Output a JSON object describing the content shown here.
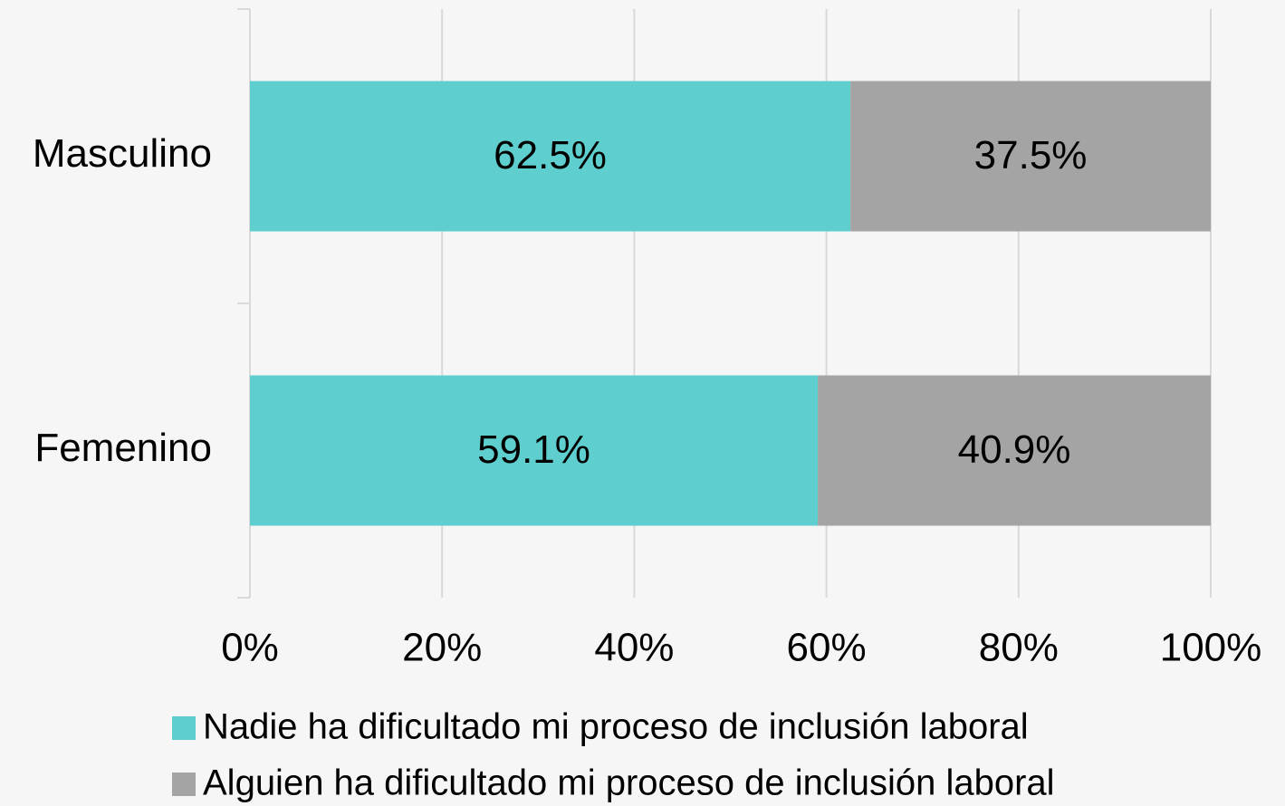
{
  "chart_data": {
    "type": "bar",
    "orientation": "horizontal",
    "stacked": true,
    "categories": [
      "Masculino",
      "Femenino"
    ],
    "series": [
      {
        "name": "Nadie ha dificultado mi proceso de inclusión laboral",
        "color": "#5ecece",
        "values": [
          62.5,
          59.1
        ],
        "value_labels": [
          "62.5%",
          "59.1%"
        ]
      },
      {
        "name": "Alguien ha dificultado mi proceso de inclusión laboral",
        "color": "#a5a4a4",
        "values": [
          37.5,
          40.9
        ],
        "value_labels": [
          "37.5%",
          "40.9%"
        ]
      }
    ],
    "xlim": [
      0,
      100
    ],
    "xticks": [
      {
        "value": 0,
        "label": "0%"
      },
      {
        "value": 20,
        "label": "20%"
      },
      {
        "value": 40,
        "label": "40%"
      },
      {
        "value": 60,
        "label": "60%"
      },
      {
        "value": 80,
        "label": "80%"
      },
      {
        "value": 100,
        "label": "100%"
      }
    ],
    "grid": true,
    "legend": "bottom"
  }
}
